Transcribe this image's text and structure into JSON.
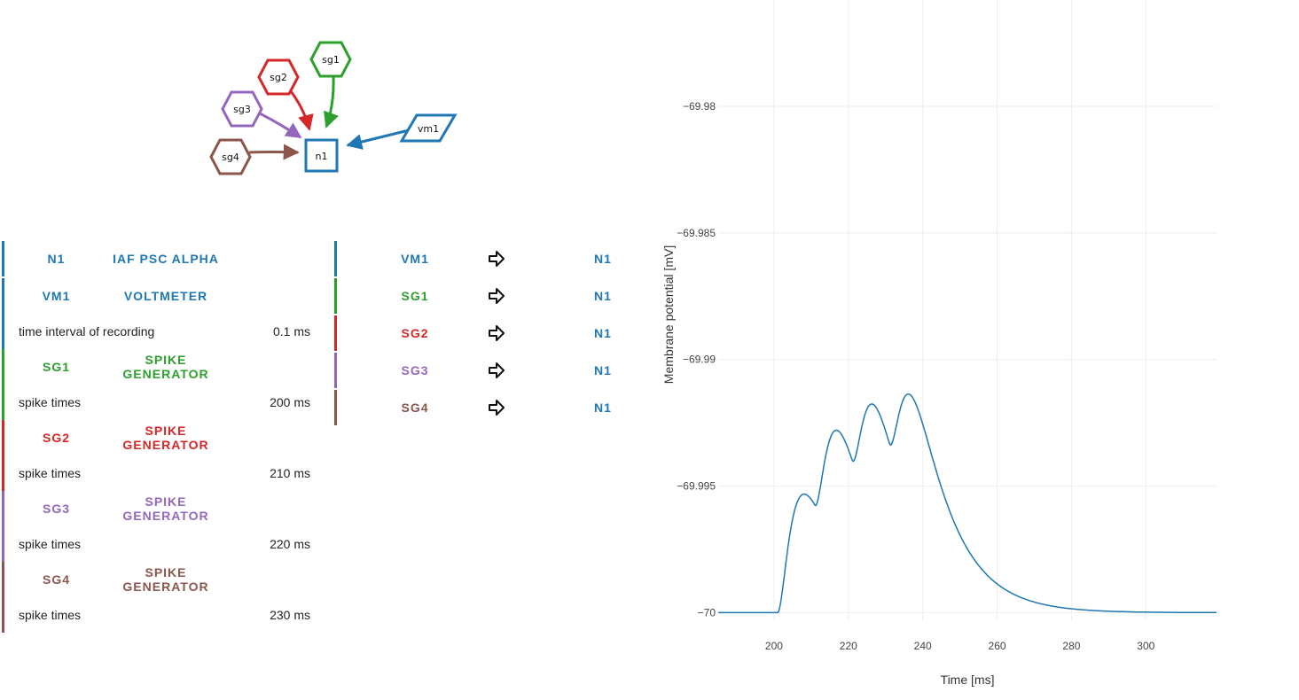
{
  "colors": {
    "n1": "#1f77b4",
    "vm1": "#1f77b4",
    "sg1": "#2ca02c",
    "sg2": "#d62728",
    "sg3": "#9467bd",
    "sg4": "#8c564b"
  },
  "graph": {
    "nodes": {
      "n1": "n1",
      "vm1": "vm1",
      "sg1": "sg1",
      "sg2": "sg2",
      "sg3": "sg3",
      "sg4": "sg4"
    }
  },
  "nodes": [
    {
      "id": "N1",
      "model": "IAF PSC ALPHA",
      "color_key": "n1",
      "params": []
    },
    {
      "id": "VM1",
      "model": "VOLTMETER",
      "color_key": "vm1",
      "params": [
        {
          "label": "time interval of recording",
          "value": "0.1 ms"
        }
      ]
    },
    {
      "id": "SG1",
      "model": "SPIKE GENERATOR",
      "color_key": "sg1",
      "params": [
        {
          "label": "spike times",
          "value": "200 ms"
        }
      ]
    },
    {
      "id": "SG2",
      "model": "SPIKE GENERATOR",
      "color_key": "sg2",
      "params": [
        {
          "label": "spike times",
          "value": "210 ms"
        }
      ]
    },
    {
      "id": "SG3",
      "model": "SPIKE GENERATOR",
      "color_key": "sg3",
      "params": [
        {
          "label": "spike times",
          "value": "220 ms"
        }
      ]
    },
    {
      "id": "SG4",
      "model": "SPIKE GENERATOR",
      "color_key": "sg4",
      "params": [
        {
          "label": "spike times",
          "value": "230 ms"
        }
      ]
    }
  ],
  "connections": [
    {
      "source": "VM1",
      "target": "N1",
      "source_color": "vm1",
      "target_color": "n1"
    },
    {
      "source": "SG1",
      "target": "N1",
      "source_color": "sg1",
      "target_color": "n1"
    },
    {
      "source": "SG2",
      "target": "N1",
      "source_color": "sg2",
      "target_color": "n1"
    },
    {
      "source": "SG3",
      "target": "N1",
      "source_color": "sg3",
      "target_color": "n1"
    },
    {
      "source": "SG4",
      "target": "N1",
      "source_color": "sg4",
      "target_color": "n1"
    }
  ],
  "chart_data": {
    "type": "line",
    "title": "",
    "xlabel": "Time [ms]",
    "ylabel": "Membrane potential [mV]",
    "xlim": [
      185,
      319
    ],
    "ylim": [
      -70.0003,
      -69.9758
    ],
    "xticks": [
      200,
      220,
      240,
      260,
      280,
      300
    ],
    "xtick_labels": [
      "200",
      "220",
      "240",
      "260",
      "280",
      "300"
    ],
    "yticks": [
      -70,
      -69.995,
      -69.99,
      -69.985,
      -69.98
    ],
    "ytick_labels": [
      "−70",
      "−69.995",
      "−69.99",
      "−69.985",
      "−69.98"
    ],
    "grid": true,
    "series": [
      {
        "color": "#1f77b4",
        "model": "alpha-shaped PSP",
        "rest": -70,
        "spike_times": [
          200,
          210,
          220,
          230
        ],
        "x_end": 319
      }
    ]
  }
}
